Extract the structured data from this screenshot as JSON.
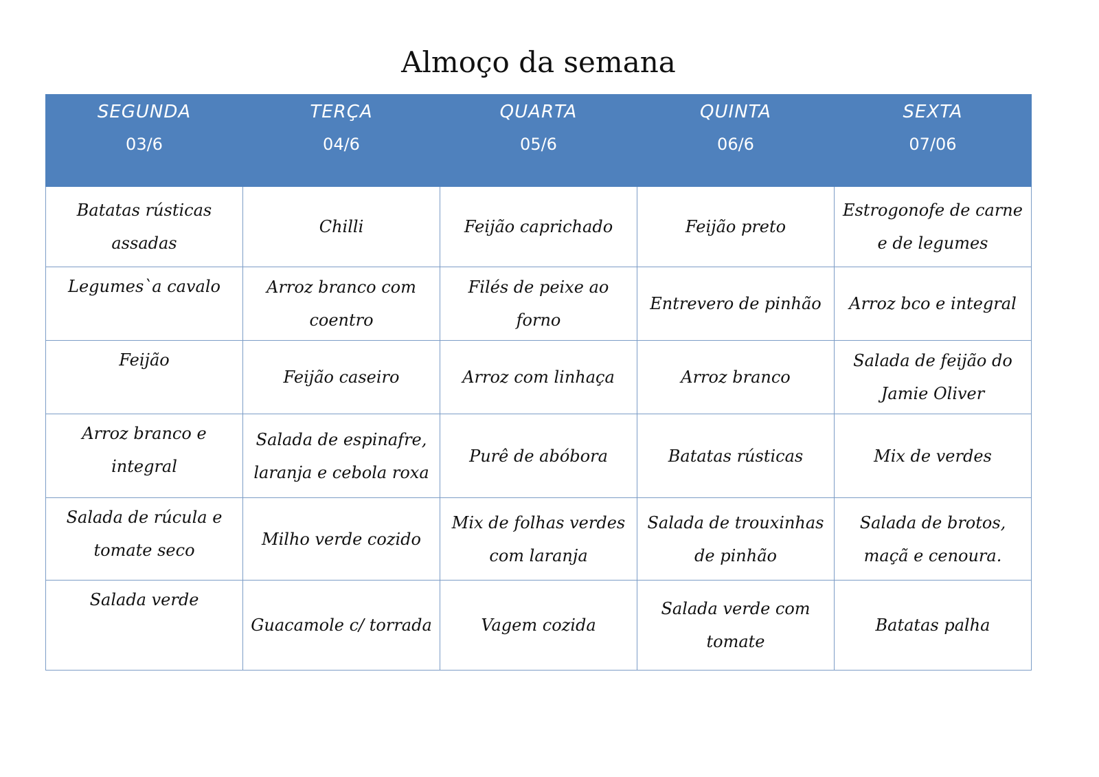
{
  "title": "Almoço da semana",
  "days": [
    {
      "name": "SEGUNDA",
      "date": "03/6"
    },
    {
      "name": "TERÇA",
      "date": "04/6"
    },
    {
      "name": "QUARTA",
      "date": "05/6"
    },
    {
      "name": "QUINTA",
      "date": "06/6"
    },
    {
      "name": "SEXTA",
      "date": "07/06"
    }
  ],
  "rows": [
    [
      "Batatas rústicas assadas",
      "Chilli",
      "Feijão caprichado",
      "Feijão preto",
      "Estrogonofe de carne e de legumes"
    ],
    [
      "Legumes`a cavalo",
      "Arroz branco com coentro",
      "Filés de peixe ao forno",
      "Entrevero de pinhão",
      "Arroz bco e integral"
    ],
    [
      "Feijão",
      "Feijão caseiro",
      "Arroz com linhaça",
      "Arroz branco",
      "Salada de feijão do Jamie Oliver"
    ],
    [
      "Arroz branco e integral",
      "Salada de espinafre, laranja e cebola roxa",
      "Purê de abóbora",
      "Batatas rústicas",
      "Mix de verdes"
    ],
    [
      "Salada de rúcula e tomate seco",
      "Milho verde cozido",
      "Mix de folhas verdes com laranja",
      "Salada de trouxinhas de pinhão",
      "Salada de brotos, maçã e cenoura."
    ],
    [
      "Salada verde",
      "Guacamole c/ torrada",
      "Vagem cozida",
      "Salada verde com tomate",
      "Batatas palha"
    ]
  ]
}
